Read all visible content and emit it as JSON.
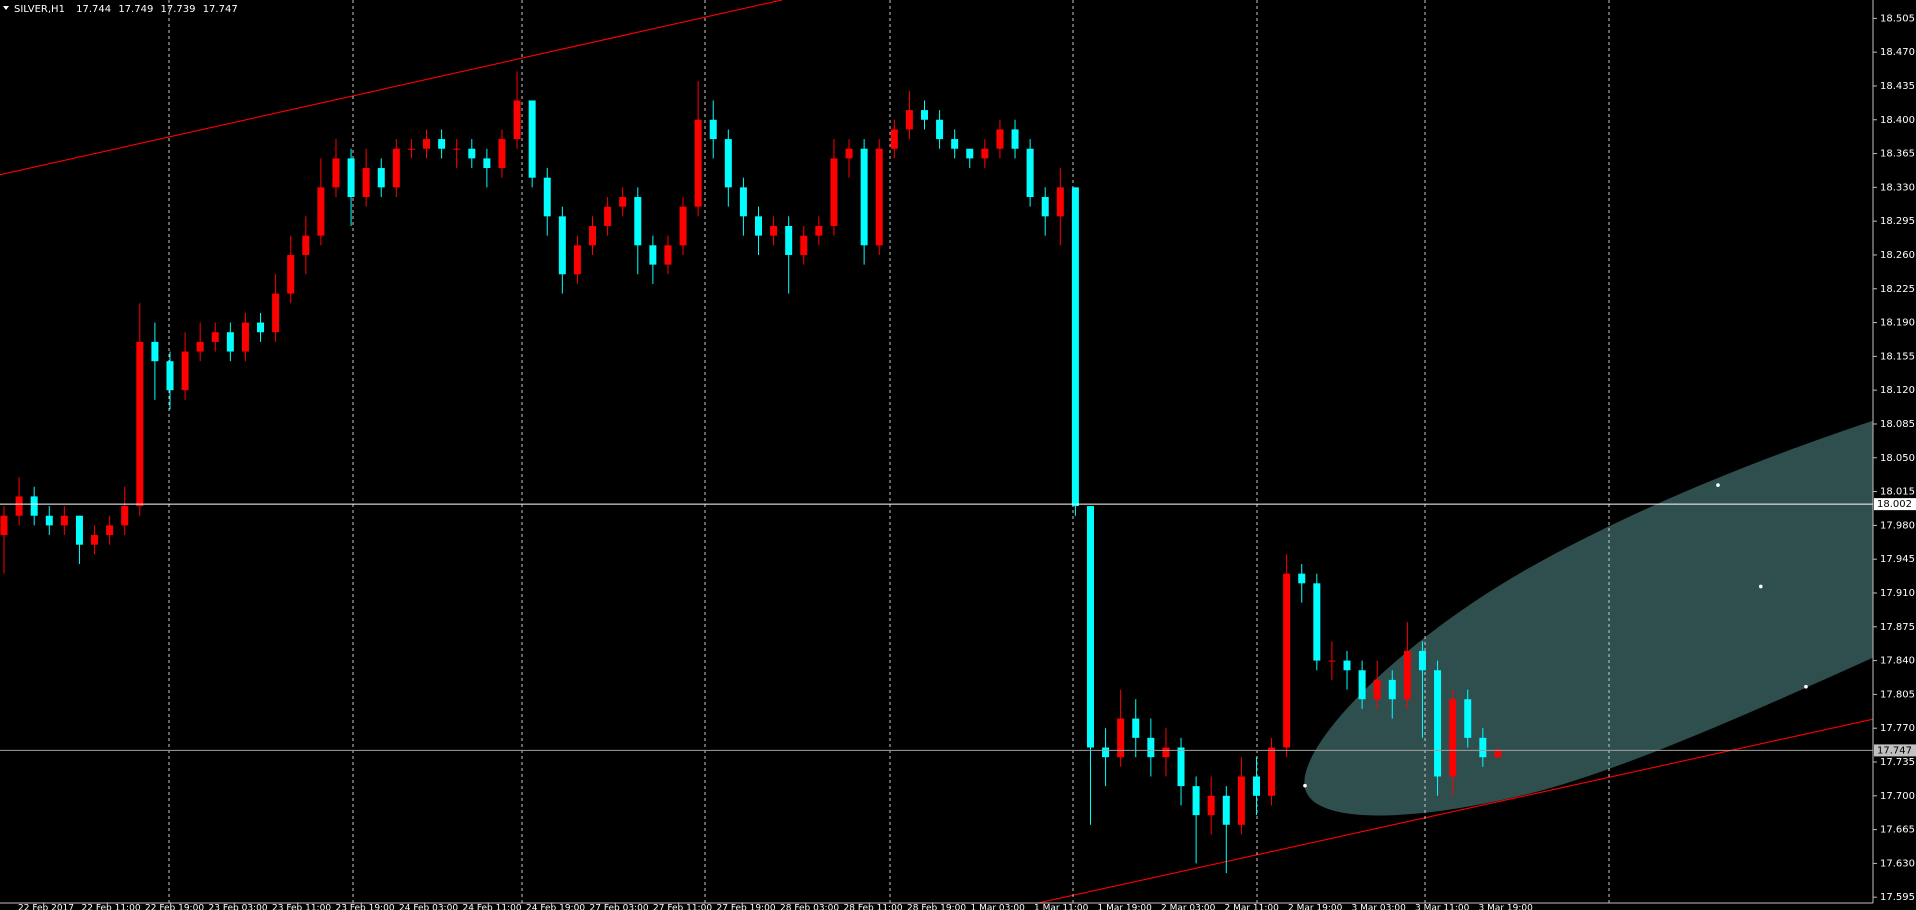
{
  "chart_data": {
    "type": "candlestick",
    "title": "SILVER,H1",
    "quote": [
      17.744,
      17.749,
      17.739,
      17.747
    ],
    "up_color": "#ff0000",
    "down_color": "#00ffff",
    "open": [
      17.97,
      17.99,
      18.01,
      17.99,
      17.98,
      17.99,
      17.96,
      17.97,
      17.98,
      18.0,
      18.17,
      18.15,
      18.12,
      18.16,
      18.17,
      18.18,
      18.16,
      18.19,
      18.18,
      18.22,
      18.26,
      18.28,
      18.33,
      18.36,
      18.32,
      18.35,
      18.33,
      18.37,
      18.37,
      18.38,
      18.37,
      18.37,
      18.36,
      18.35,
      18.38,
      18.42,
      18.34,
      18.3,
      18.24,
      18.27,
      18.29,
      18.31,
      18.32,
      18.27,
      18.25,
      18.27,
      18.31,
      18.4,
      18.38,
      18.33,
      18.3,
      18.28,
      18.29,
      18.26,
      18.28,
      18.29,
      18.36,
      18.37,
      18.27,
      18.37,
      18.39,
      18.41,
      18.4,
      18.38,
      18.37,
      18.36,
      18.37,
      18.39,
      18.37,
      18.32,
      18.3,
      18.33,
      18.0,
      17.75,
      17.74,
      17.78,
      17.76,
      17.74,
      17.75,
      17.71,
      17.68,
      17.7,
      17.67,
      17.72,
      17.7,
      17.75,
      17.93,
      17.92,
      17.84,
      17.84,
      17.83,
      17.8,
      17.82,
      17.8,
      17.85,
      17.83,
      17.72,
      17.8,
      17.76,
      17.74
    ],
    "high": [
      18.0,
      18.03,
      18.02,
      18.0,
      18.0,
      17.99,
      17.98,
      17.99,
      18.02,
      18.21,
      18.19,
      18.16,
      18.18,
      18.19,
      18.19,
      18.19,
      18.2,
      18.2,
      18.24,
      18.28,
      18.3,
      18.36,
      18.38,
      18.37,
      18.37,
      18.36,
      18.38,
      18.38,
      18.39,
      18.39,
      18.38,
      18.38,
      18.37,
      18.39,
      18.45,
      18.42,
      18.35,
      18.31,
      18.28,
      18.3,
      18.32,
      18.33,
      18.33,
      18.28,
      18.28,
      18.32,
      18.44,
      18.42,
      18.39,
      18.34,
      18.31,
      18.3,
      18.3,
      18.29,
      18.3,
      18.38,
      18.38,
      18.38,
      18.38,
      18.4,
      18.43,
      18.42,
      18.41,
      18.39,
      18.37,
      18.38,
      18.4,
      18.4,
      18.38,
      18.33,
      18.35,
      18.33,
      18.0,
      17.77,
      17.81,
      17.8,
      17.78,
      17.77,
      17.76,
      17.72,
      17.72,
      17.71,
      17.74,
      17.74,
      17.76,
      17.95,
      17.94,
      17.93,
      17.86,
      17.85,
      17.84,
      17.84,
      17.83,
      17.88,
      17.86,
      17.84,
      17.81,
      17.81,
      17.77,
      17.75
    ],
    "low": [
      17.93,
      17.98,
      17.98,
      17.97,
      17.97,
      17.94,
      17.95,
      17.96,
      17.97,
      17.99,
      18.11,
      18.1,
      18.11,
      18.15,
      18.16,
      18.15,
      18.15,
      18.17,
      18.17,
      18.21,
      18.24,
      18.27,
      18.32,
      18.29,
      18.31,
      18.32,
      18.32,
      18.36,
      18.36,
      18.36,
      18.35,
      18.35,
      18.33,
      18.34,
      18.37,
      18.33,
      18.28,
      18.22,
      18.23,
      18.26,
      18.28,
      18.3,
      18.24,
      18.23,
      18.24,
      18.26,
      18.3,
      18.36,
      18.31,
      18.28,
      18.26,
      18.27,
      18.22,
      18.25,
      18.27,
      18.28,
      18.34,
      18.25,
      18.26,
      18.36,
      18.38,
      18.39,
      18.37,
      18.36,
      18.35,
      18.35,
      18.36,
      18.36,
      18.31,
      18.28,
      18.27,
      17.99,
      17.67,
      17.71,
      17.73,
      17.74,
      17.72,
      17.72,
      17.69,
      17.63,
      17.66,
      17.62,
      17.66,
      17.68,
      17.69,
      17.74,
      17.9,
      17.83,
      17.82,
      17.81,
      17.79,
      17.79,
      17.78,
      17.79,
      17.76,
      17.7,
      17.7,
      17.75,
      17.73,
      17.74
    ],
    "close": [
      17.99,
      18.01,
      17.99,
      17.98,
      17.99,
      17.96,
      17.97,
      17.98,
      18.0,
      18.17,
      18.15,
      18.12,
      18.16,
      18.17,
      18.18,
      18.16,
      18.19,
      18.18,
      18.22,
      18.26,
      18.28,
      18.33,
      18.36,
      18.32,
      18.35,
      18.33,
      18.37,
      18.37,
      18.38,
      18.37,
      18.37,
      18.36,
      18.35,
      18.38,
      18.42,
      18.34,
      18.3,
      18.24,
      18.27,
      18.29,
      18.31,
      18.32,
      18.27,
      18.25,
      18.27,
      18.31,
      18.4,
      18.38,
      18.33,
      18.3,
      18.28,
      18.29,
      18.26,
      18.28,
      18.29,
      18.36,
      18.37,
      18.27,
      18.37,
      18.39,
      18.41,
      18.4,
      18.38,
      18.37,
      18.36,
      18.37,
      18.39,
      18.37,
      18.32,
      18.3,
      18.33,
      18.0,
      17.75,
      17.74,
      17.78,
      17.76,
      17.74,
      17.75,
      17.71,
      17.68,
      17.7,
      17.67,
      17.72,
      17.7,
      17.75,
      17.93,
      17.92,
      17.84,
      17.84,
      17.83,
      17.8,
      17.82,
      17.8,
      17.85,
      17.83,
      17.72,
      17.8,
      17.76,
      17.74,
      17.747
    ],
    "ylim": [
      17.589,
      18.524
    ],
    "yticks": [
      18.505,
      {
        "value": 18.47,
        "label": "18.470"
      },
      18.435,
      {
        "value": 18.4,
        "label": "18.400"
      },
      18.365,
      {
        "value": 18.33,
        "label": "18.330"
      },
      18.295,
      {
        "value": 18.26,
        "label": "18.260"
      },
      18.225,
      {
        "value": 18.19,
        "label": "18.190"
      },
      18.155,
      {
        "value": 18.12,
        "label": "18.120"
      },
      18.085,
      {
        "value": 18.05,
        "label": "18.050"
      },
      18.015,
      {
        "value": 17.98,
        "label": "17.980"
      },
      17.945,
      {
        "value": 17.91,
        "label": "17.910"
      },
      17.875,
      {
        "value": 17.84,
        "label": "17.840"
      },
      17.805,
      {
        "value": 17.77,
        "label": "17.770"
      },
      17.735,
      {
        "value": 17.7,
        "label": "17.700"
      },
      17.665,
      {
        "value": 17.63,
        "label": "17.630"
      },
      17.595
    ],
    "x_labels": [
      "22 Feb 2017",
      "22 Feb 11:00",
      "22 Feb 19:00",
      "23 Feb 03:00",
      "23 Feb 11:00",
      "23 Feb 19:00",
      "24 Feb 03:00",
      "24 Feb 11:00",
      "24 Feb 19:00",
      "27 Feb 03:00",
      "27 Feb 11:00",
      "27 Feb 19:00",
      "28 Feb 03:00",
      "28 Feb 11:00",
      "28 Feb 19:00",
      "1 Mar 03:00",
      "1 Mar 11:00",
      "1 Mar 19:00",
      "2 Mar 03:00",
      "2 Mar 11:00",
      "2 Mar 19:00",
      "3 Mar 03:00",
      "3 Mar 11:00",
      "3 Mar 19:00"
    ],
    "price_lines": [
      {
        "value": 18.002,
        "color": "#ffffff",
        "label_bg": "#ffffff",
        "label_fg": "#000000"
      },
      {
        "value": 17.747,
        "color": "#a0a0a0",
        "label_bg": "#c0c0c0",
        "label_fg": "#000000"
      }
    ]
  }
}
